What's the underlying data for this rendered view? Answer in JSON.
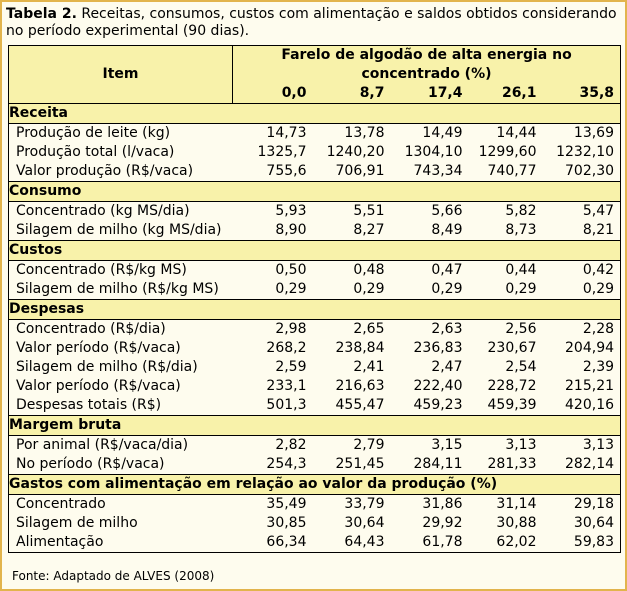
{
  "caption": {
    "label": "Tabela 2.",
    "text": " Receitas, consumos, custos com alimentação e saldos obtidos considerando no período experimental (90 dias)."
  },
  "header": {
    "item": "Item",
    "farelo": "Farelo de algodão de alta energia no concentrado (%)",
    "levels": [
      "0,0",
      "8,7",
      "17,4",
      "26,1",
      "35,8"
    ]
  },
  "sections": [
    {
      "title": "Receita",
      "rows": [
        {
          "label": "Produção de leite (kg)",
          "values": [
            "14,73",
            "13,78",
            "14,49",
            "14,44",
            "13,69"
          ]
        },
        {
          "label": "Produção total (l/vaca)",
          "values": [
            "1325,7",
            "1240,20",
            "1304,10",
            "1299,60",
            "1232,10"
          ]
        },
        {
          "label": "Valor produção (R$/vaca)",
          "values": [
            "755,6",
            "706,91",
            "743,34",
            "740,77",
            "702,30"
          ]
        }
      ]
    },
    {
      "title": "Consumo",
      "rows": [
        {
          "label": "Concentrado (kg MS/dia)",
          "values": [
            "5,93",
            "5,51",
            "5,66",
            "5,82",
            "5,47"
          ]
        },
        {
          "label": "Silagem de milho (kg MS/dia)",
          "values": [
            "8,90",
            "8,27",
            "8,49",
            "8,73",
            "8,21"
          ]
        }
      ]
    },
    {
      "title": "Custos",
      "rows": [
        {
          "label": "Concentrado (R$/kg MS)",
          "values": [
            "0,50",
            "0,48",
            "0,47",
            "0,44",
            "0,42"
          ]
        },
        {
          "label": "Silagem de milho (R$/kg MS)",
          "values": [
            "0,29",
            "0,29",
            "0,29",
            "0,29",
            "0,29"
          ]
        }
      ]
    },
    {
      "title": "Despesas",
      "rows": [
        {
          "label": "Concentrado (R$/dia)",
          "values": [
            "2,98",
            "2,65",
            "2,63",
            "2,56",
            "2,28"
          ]
        },
        {
          "label": "Valor período (R$/vaca)",
          "values": [
            "268,2",
            "238,84",
            "236,83",
            "230,67",
            "204,94"
          ]
        },
        {
          "label": "Silagem de milho (R$/dia)",
          "values": [
            "2,59",
            "2,41",
            "2,47",
            "2,54",
            "2,39"
          ]
        },
        {
          "label": "Valor período (R$/vaca)",
          "values": [
            "233,1",
            "216,63",
            "222,40",
            "228,72",
            "215,21"
          ]
        },
        {
          "label": "Despesas totais (R$)",
          "values": [
            "501,3",
            "455,47",
            "459,23",
            "459,39",
            "420,16"
          ]
        }
      ]
    },
    {
      "title": "Margem bruta",
      "rows": [
        {
          "label": "Por animal (R$/vaca/dia)",
          "values": [
            "2,82",
            "2,79",
            "3,15",
            "3,13",
            "3,13"
          ]
        },
        {
          "label": "No período (R$/vaca)",
          "values": [
            "254,3",
            "251,45",
            "284,11",
            "281,33",
            "282,14"
          ]
        }
      ]
    },
    {
      "title": "Gastos com alimentação em relação ao valor da produção (%)",
      "rows": [
        {
          "label": "Concentrado",
          "values": [
            "35,49",
            "33,79",
            "31,86",
            "31,14",
            "29,18"
          ]
        },
        {
          "label": "Silagem de milho",
          "values": [
            "30,85",
            "30,64",
            "29,92",
            "30,88",
            "30,64"
          ]
        },
        {
          "label": "Alimentação",
          "values": [
            "66,34",
            "64,43",
            "61,78",
            "62,02",
            "59,83"
          ]
        }
      ]
    }
  ],
  "source": "Fonte: Adaptado de ALVES (2008)"
}
